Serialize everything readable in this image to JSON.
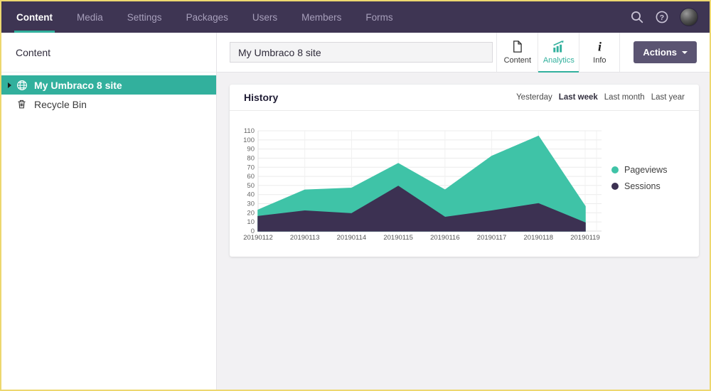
{
  "nav": {
    "items": [
      {
        "label": "Content",
        "active": true
      },
      {
        "label": "Media",
        "active": false
      },
      {
        "label": "Settings",
        "active": false
      },
      {
        "label": "Packages",
        "active": false
      },
      {
        "label": "Users",
        "active": false
      },
      {
        "label": "Members",
        "active": false
      },
      {
        "label": "Forms",
        "active": false
      }
    ]
  },
  "sidebar": {
    "title": "Content",
    "tree": [
      {
        "label": "My Umbraco 8 site",
        "icon": "globe-icon",
        "selected": true,
        "expandable": true
      },
      {
        "label": "Recycle Bin",
        "icon": "trash-icon",
        "selected": false,
        "expandable": false
      }
    ]
  },
  "header": {
    "name_input_value": "My Umbraco 8 site",
    "tabs": [
      {
        "label": "Content",
        "icon": "document-icon",
        "active": false
      },
      {
        "label": "Analytics",
        "icon": "analytics-icon",
        "active": true
      },
      {
        "label": "Info",
        "icon": "info-icon",
        "active": false
      }
    ],
    "actions_label": "Actions"
  },
  "panel": {
    "title": "History",
    "filters": [
      {
        "label": "Yesterday",
        "active": false
      },
      {
        "label": "Last week",
        "active": true
      },
      {
        "label": "Last month",
        "active": false
      },
      {
        "label": "Last year",
        "active": false
      }
    ]
  },
  "chart_data": {
    "type": "area",
    "title": "History",
    "x": [
      "20190112",
      "20190113",
      "20190114",
      "20190115",
      "20190116",
      "20190117",
      "20190118",
      "20190119"
    ],
    "series": [
      {
        "name": "Pageviews",
        "color": "#3fc3a7",
        "values": [
          23,
          45,
          47,
          74,
          45,
          82,
          104,
          27
        ]
      },
      {
        "name": "Sessions",
        "color": "#3c3152",
        "values": [
          16,
          22,
          19,
          49,
          15,
          22,
          30,
          9
        ]
      }
    ],
    "ylim": [
      0,
      110
    ],
    "ytick_step": 10,
    "grid": true,
    "legend_position": "right",
    "overlaid": true
  },
  "colors": {
    "accent_teal": "#32b09d",
    "nav_bg": "#3e3553",
    "actions_bg": "#5b5472",
    "frame_border": "#edd76f"
  }
}
